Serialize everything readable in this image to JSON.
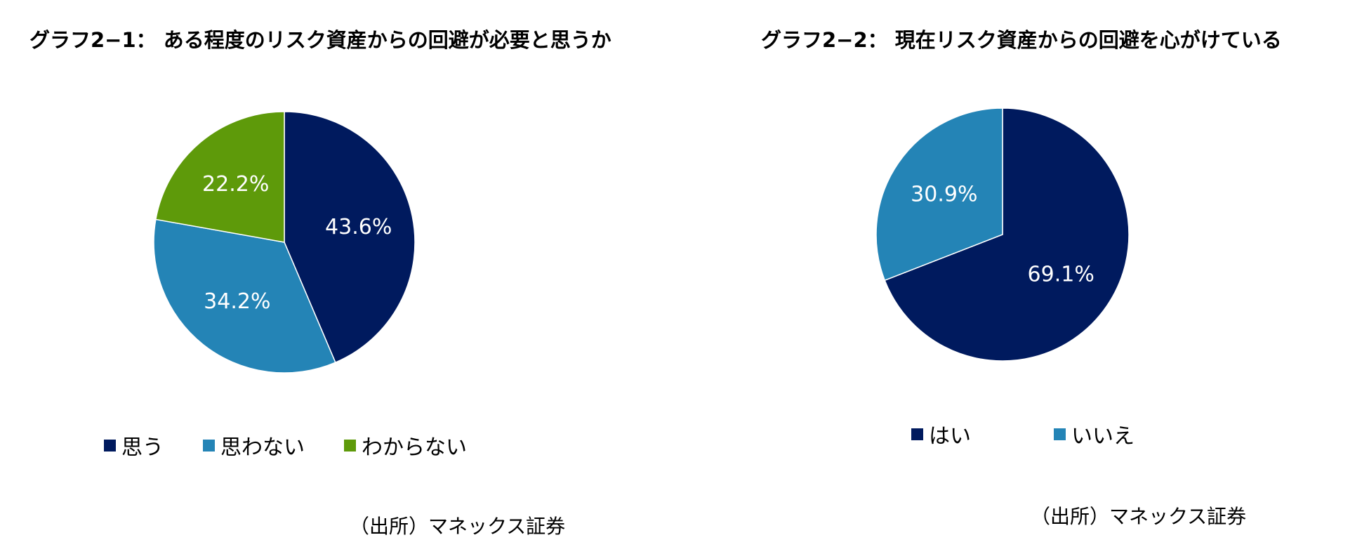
{
  "colors": {
    "navy": "#001a5e",
    "steel_blue": "#2484b6",
    "green": "#5e9a0a",
    "label_text": "#ffffff"
  },
  "chart_data": [
    {
      "type": "pie",
      "title": "グラフ2−1： ある程度のリスク資産からの回避が必要と思うか",
      "slices": [
        {
          "label": "思う",
          "value": 43.6,
          "display": "43.6%",
          "color": "#001a5e"
        },
        {
          "label": "思わない",
          "value": 34.2,
          "display": "34.2%",
          "color": "#2484b6"
        },
        {
          "label": "わからない",
          "value": 22.2,
          "display": "22.2%",
          "color": "#5e9a0a"
        }
      ],
      "start_angle_deg": 0,
      "direction": "clockwise",
      "legend_position": "bottom",
      "source": "（出所）マネックス証券"
    },
    {
      "type": "pie",
      "title": "グラフ2−2： 現在リスク資産からの回避を心がけている",
      "slices": [
        {
          "label": "はい",
          "value": 69.1,
          "display": "69.1%",
          "color": "#001a5e"
        },
        {
          "label": "いいえ",
          "value": 30.9,
          "display": "30.9%",
          "color": "#2484b6"
        }
      ],
      "start_angle_deg": 0,
      "direction": "clockwise",
      "legend_position": "bottom",
      "source": "（出所）マネックス証券"
    }
  ]
}
